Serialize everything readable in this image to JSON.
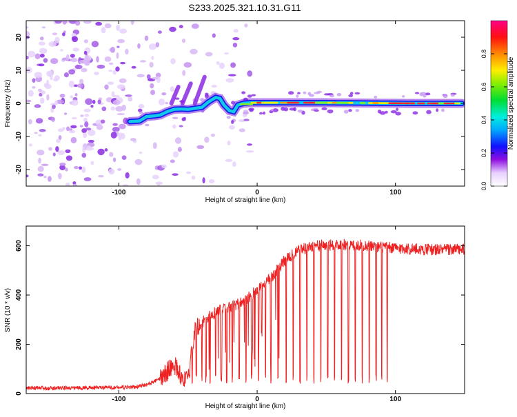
{
  "chart_data": [
    {
      "type": "heatmap",
      "title": "S233.2025.321.10.31.G11",
      "xlabel": "Height of straight line (km)",
      "ylabel": "Frequency (Hz)",
      "xlim": [
        -167,
        150
      ],
      "ylim": [
        -25,
        25
      ],
      "xticks": [
        -100,
        0,
        100
      ],
      "yticks": [
        -20,
        -10,
        0,
        10,
        20
      ],
      "colorbar": {
        "label": "Normalized spectral amplitude",
        "range": [
          0,
          1
        ],
        "ticks": [
          "0.0",
          "0.2",
          "0.4",
          "0.6",
          "0.8"
        ],
        "tick_values": [
          0.0,
          0.2,
          0.4,
          0.6,
          0.8
        ]
      },
      "signal_track": {
        "x": [
          -92,
          -85,
          -80,
          -75,
          -70,
          -65,
          -60,
          -55,
          -50,
          -45,
          -40,
          -35,
          -30,
          -27,
          -24,
          -20,
          -17,
          -14,
          -10,
          -5,
          0,
          20,
          50,
          80,
          110,
          148
        ],
        "freq": [
          -5.5,
          -5.3,
          -4,
          -3.8,
          -3.5,
          -2.5,
          -1.8,
          -1.7,
          -1.8,
          -1.5,
          -1.2,
          0.5,
          1.8,
          1.5,
          -0.5,
          -2.2,
          -2.5,
          -0.5,
          0,
          0.2,
          0.2,
          0.2,
          0.2,
          0.1,
          0,
          0
        ]
      }
    },
    {
      "type": "line",
      "xlabel": "Height of straight line (km)",
      "ylabel": "SNR (10 * v/v)",
      "xlim": [
        -167,
        150
      ],
      "ylim": [
        0,
        680
      ],
      "xticks": [
        -100,
        0,
        100
      ],
      "yticks": [
        0,
        200,
        400,
        600
      ],
      "series": [
        {
          "name": "SNR",
          "color": "#ee2222",
          "envelope_x": [
            -167,
            -90,
            -80,
            -70,
            -65,
            -60,
            -55,
            -50,
            -45,
            -40,
            -30,
            -20,
            -10,
            0,
            10,
            20,
            30,
            40,
            60,
            80,
            100,
            120,
            150
          ],
          "envelope_y": [
            22,
            25,
            35,
            60,
            90,
            120,
            70,
            50,
            260,
            290,
            330,
            350,
            370,
            420,
            470,
            540,
            580,
            600,
            605,
            600,
            590,
            585,
            585
          ],
          "noise_amplitude": 14,
          "dropouts": [
            -50,
            -47,
            -44,
            -40,
            -37,
            -34,
            -30,
            -26,
            -22,
            -18,
            -13,
            -8,
            -4,
            1,
            6,
            10,
            15,
            21,
            26,
            31,
            36,
            41,
            46,
            51,
            56,
            61,
            66,
            71,
            76,
            81,
            86,
            90,
            94
          ],
          "dropout_floor": 40
        }
      ]
    }
  ]
}
